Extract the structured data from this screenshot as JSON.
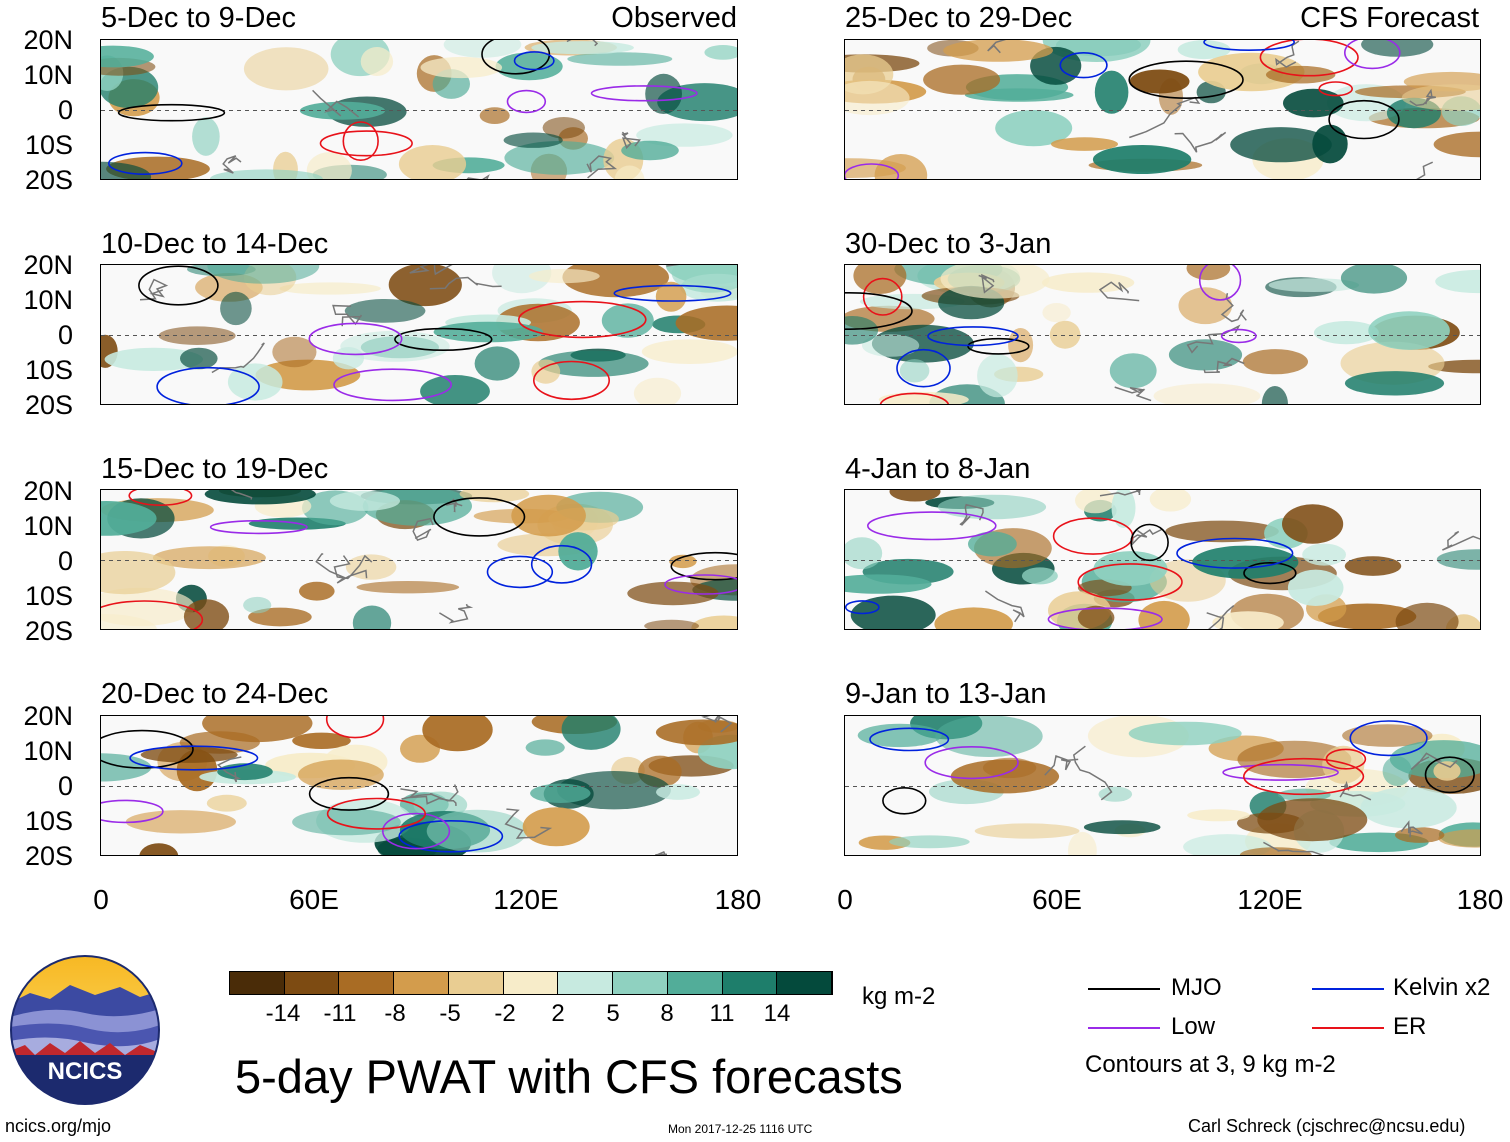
{
  "panels": [
    {
      "id": "obs1",
      "title": "5-Dec to 9-Dec",
      "tag": "Observed"
    },
    {
      "id": "obs2",
      "title": "10-Dec to 14-Dec",
      "tag": ""
    },
    {
      "id": "obs3",
      "title": "15-Dec to 19-Dec",
      "tag": ""
    },
    {
      "id": "obs4",
      "title": "20-Dec to 24-Dec",
      "tag": ""
    },
    {
      "id": "fc1",
      "title": "25-Dec to 29-Dec",
      "tag": "CFS Forecast"
    },
    {
      "id": "fc2",
      "title": "30-Dec to 3-Jan",
      "tag": ""
    },
    {
      "id": "fc3",
      "title": "4-Jan to 8-Jan",
      "tag": ""
    },
    {
      "id": "fc4",
      "title": "9-Jan to 13-Jan",
      "tag": ""
    }
  ],
  "axes": {
    "lat_labels": [
      "20N",
      "10N",
      "0",
      "10S",
      "20S"
    ],
    "lon_labels": [
      "0",
      "60E",
      "120E",
      "180"
    ]
  },
  "colorbar": {
    "labels": [
      "-14",
      "-11",
      "-8",
      "-5",
      "-2",
      "2",
      "5",
      "8",
      "11",
      "14"
    ],
    "colors": [
      "#4a2c08",
      "#7d4b12",
      "#a96c24",
      "#d39c4c",
      "#e9cd92",
      "#f7ecc9",
      "#f7f7f7",
      "#c7eae0",
      "#8fd1c0",
      "#52ad99",
      "#1e7e6b",
      "#044a3c"
    ],
    "units": "kg m-2"
  },
  "legend": {
    "items": [
      {
        "label": "MJO",
        "color": "#000000"
      },
      {
        "label": "Kelvin x2",
        "color": "#0022dd"
      },
      {
        "label": "Low",
        "color": "#9a2be8"
      },
      {
        "label": "ER",
        "color": "#e8121a"
      }
    ],
    "note": "Contours at 3, 9 kg m-2"
  },
  "title": "5-day PWAT with CFS forecasts",
  "logo_text": "NCICS",
  "footer": {
    "left": "ncics.org/mjo",
    "center": "Mon 2017-12-25 1116 UTC",
    "right": "Carl Schreck (cjschrec@ncsu.edu)"
  }
}
